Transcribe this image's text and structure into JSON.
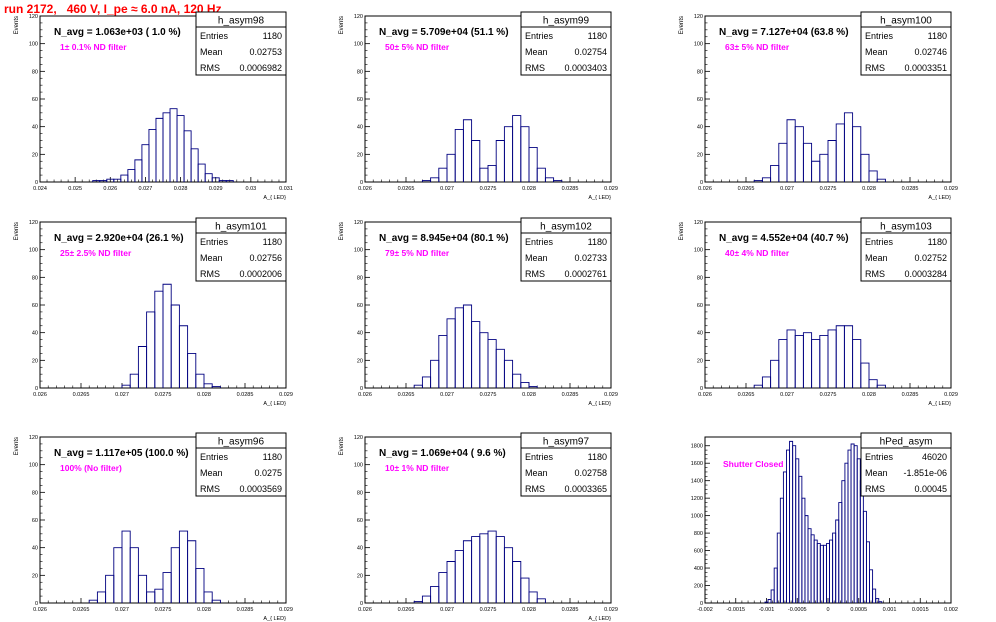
{
  "run_title": "run 2172,   460 V, I_pe ≈ 6.0 nA, 120 Hz",
  "colors": {
    "title": "#ff0000",
    "filter_label": "#ff00ff",
    "histogram": "#000080",
    "frame": "#000000"
  },
  "chart_data": [
    {
      "type": "histogram",
      "name": "h_asym98",
      "stats": [
        [
          "Entries",
          "1180"
        ],
        [
          "Mean",
          "0.02753"
        ],
        [
          "RMS",
          "0.0006982"
        ]
      ],
      "n_avg_label": "N_avg = 1.063e+03 ( 1.0 %)",
      "filter_label": "1± 0.1% ND filter",
      "ylabel": "Events",
      "xlabel": "A_{ LED}",
      "xlim": [
        0.024,
        0.031
      ],
      "xticks": [
        "0.024",
        "0.025",
        "0.026",
        "0.027",
        "0.028",
        "0.029",
        "0.03",
        "0.031"
      ],
      "ylim": [
        0,
        120
      ],
      "yticks": [
        0,
        20,
        40,
        60,
        80,
        100,
        120
      ],
      "bins": [
        [
          0.0256,
          1
        ],
        [
          0.0258,
          1
        ],
        [
          0.026,
          2
        ],
        [
          0.0262,
          2
        ],
        [
          0.0264,
          5
        ],
        [
          0.0266,
          9
        ],
        [
          0.0268,
          16
        ],
        [
          0.027,
          27
        ],
        [
          0.0272,
          38
        ],
        [
          0.0274,
          46
        ],
        [
          0.0276,
          50
        ],
        [
          0.0278,
          53
        ],
        [
          0.028,
          48
        ],
        [
          0.0282,
          37
        ],
        [
          0.0284,
          24
        ],
        [
          0.0286,
          13
        ],
        [
          0.0288,
          6
        ],
        [
          0.029,
          3
        ],
        [
          0.0292,
          1
        ],
        [
          0.0294,
          1
        ]
      ]
    },
    {
      "type": "histogram",
      "name": "h_asym99",
      "stats": [
        [
          "Entries",
          "1180"
        ],
        [
          "Mean",
          "0.02754"
        ],
        [
          "RMS",
          "0.0003403"
        ]
      ],
      "n_avg_label": "N_avg = 5.709e+04 (51.1 %)",
      "filter_label": "50± 5% ND filter",
      "ylabel": "Events",
      "xlabel": "A_{ LED}",
      "xlim": [
        0.026,
        0.029
      ],
      "xticks": [
        "0.026",
        "0.0265",
        "0.027",
        "0.0275",
        "0.028",
        "0.0285",
        "0.029"
      ],
      "ylim": [
        0,
        120
      ],
      "yticks": [
        0,
        20,
        40,
        60,
        80,
        100,
        120
      ],
      "bins": [
        [
          0.02675,
          1
        ],
        [
          0.02685,
          3
        ],
        [
          0.02695,
          10
        ],
        [
          0.02705,
          20
        ],
        [
          0.02715,
          38
        ],
        [
          0.02725,
          45
        ],
        [
          0.02735,
          30
        ],
        [
          0.02745,
          10
        ],
        [
          0.02755,
          12
        ],
        [
          0.02765,
          30
        ],
        [
          0.02775,
          40
        ],
        [
          0.02785,
          48
        ],
        [
          0.02795,
          40
        ],
        [
          0.02805,
          25
        ],
        [
          0.02815,
          10
        ],
        [
          0.02825,
          3
        ],
        [
          0.02835,
          1
        ]
      ]
    },
    {
      "type": "histogram",
      "name": "h_asym100",
      "stats": [
        [
          "Entries",
          "1180"
        ],
        [
          "Mean",
          "0.02746"
        ],
        [
          "RMS",
          "0.0003351"
        ]
      ],
      "n_avg_label": "N_avg = 7.127e+04 (63.8 %)",
      "filter_label": "63± 5% ND filter",
      "ylabel": "Events",
      "xlabel": "A_{ LED}",
      "xlim": [
        0.026,
        0.029
      ],
      "xticks": [
        "0.026",
        "0.0265",
        "0.027",
        "0.0275",
        "0.028",
        "0.0285",
        "0.029"
      ],
      "ylim": [
        0,
        120
      ],
      "yticks": [
        0,
        20,
        40,
        60,
        80,
        100,
        120
      ],
      "bins": [
        [
          0.02665,
          1
        ],
        [
          0.02675,
          3
        ],
        [
          0.02685,
          12
        ],
        [
          0.02695,
          28
        ],
        [
          0.02705,
          45
        ],
        [
          0.02715,
          40
        ],
        [
          0.02725,
          28
        ],
        [
          0.02735,
          15
        ],
        [
          0.02745,
          20
        ],
        [
          0.02755,
          30
        ],
        [
          0.02765,
          42
        ],
        [
          0.02775,
          50
        ],
        [
          0.02785,
          40
        ],
        [
          0.02795,
          20
        ],
        [
          0.02805,
          8
        ],
        [
          0.02815,
          2
        ]
      ]
    },
    {
      "type": "histogram",
      "name": "h_asym101",
      "stats": [
        [
          "Entries",
          "1180"
        ],
        [
          "Mean",
          "0.02756"
        ],
        [
          "RMS",
          "0.0002006"
        ]
      ],
      "n_avg_label": "N_avg = 2.920e+04 (26.1 %)",
      "filter_label": "25± 2.5% ND filter",
      "ylabel": "Events",
      "xlabel": "A_{ LED}",
      "xlim": [
        0.026,
        0.029
      ],
      "xticks": [
        "0.026",
        "0.0265",
        "0.027",
        "0.0275",
        "0.028",
        "0.0285",
        "0.029"
      ],
      "ylim": [
        0,
        120
      ],
      "yticks": [
        0,
        20,
        40,
        60,
        80,
        100,
        120
      ],
      "bins": [
        [
          0.02705,
          2
        ],
        [
          0.02715,
          10
        ],
        [
          0.02725,
          30
        ],
        [
          0.02735,
          55
        ],
        [
          0.02745,
          70
        ],
        [
          0.02755,
          75
        ],
        [
          0.02765,
          60
        ],
        [
          0.02775,
          45
        ],
        [
          0.02785,
          25
        ],
        [
          0.02795,
          10
        ],
        [
          0.02805,
          3
        ],
        [
          0.02815,
          1
        ]
      ]
    },
    {
      "type": "histogram",
      "name": "h_asym102",
      "stats": [
        [
          "Entries",
          "1180"
        ],
        [
          "Mean",
          "0.02733"
        ],
        [
          "RMS",
          "0.0002761"
        ]
      ],
      "n_avg_label": "N_avg = 8.945e+04 (80.1 %)",
      "filter_label": "79± 5% ND filter",
      "ylabel": "Events",
      "xlabel": "A_{ LED}",
      "xlim": [
        0.026,
        0.029
      ],
      "xticks": [
        "0.026",
        "0.0265",
        "0.027",
        "0.0275",
        "0.028",
        "0.0285",
        "0.029"
      ],
      "ylim": [
        0,
        120
      ],
      "yticks": [
        0,
        20,
        40,
        60,
        80,
        100,
        120
      ],
      "bins": [
        [
          0.02665,
          2
        ],
        [
          0.02675,
          8
        ],
        [
          0.02685,
          20
        ],
        [
          0.02695,
          38
        ],
        [
          0.02705,
          50
        ],
        [
          0.02715,
          58
        ],
        [
          0.02725,
          60
        ],
        [
          0.02735,
          48
        ],
        [
          0.02745,
          40
        ],
        [
          0.02755,
          35
        ],
        [
          0.02765,
          28
        ],
        [
          0.02775,
          20
        ],
        [
          0.02785,
          10
        ],
        [
          0.02795,
          4
        ],
        [
          0.02805,
          1
        ]
      ]
    },
    {
      "type": "histogram",
      "name": "h_asym103",
      "stats": [
        [
          "Entries",
          "1180"
        ],
        [
          "Mean",
          "0.02752"
        ],
        [
          "RMS",
          "0.0003284"
        ]
      ],
      "n_avg_label": "N_avg = 4.552e+04 (40.7 %)",
      "filter_label": "40± 4% ND filter",
      "ylabel": "Events",
      "xlabel": "A_{ LED}",
      "xlim": [
        0.026,
        0.029
      ],
      "xticks": [
        "0.026",
        "0.0265",
        "0.027",
        "0.0275",
        "0.028",
        "0.0285",
        "0.029"
      ],
      "ylim": [
        0,
        120
      ],
      "yticks": [
        0,
        20,
        40,
        60,
        80,
        100,
        120
      ],
      "bins": [
        [
          0.02665,
          2
        ],
        [
          0.02675,
          8
        ],
        [
          0.02685,
          20
        ],
        [
          0.02695,
          35
        ],
        [
          0.02705,
          42
        ],
        [
          0.02715,
          38
        ],
        [
          0.02725,
          40
        ],
        [
          0.02735,
          35
        ],
        [
          0.02745,
          38
        ],
        [
          0.02755,
          42
        ],
        [
          0.02765,
          45
        ],
        [
          0.02775,
          45
        ],
        [
          0.02785,
          35
        ],
        [
          0.02795,
          18
        ],
        [
          0.02805,
          6
        ],
        [
          0.02815,
          2
        ]
      ]
    },
    {
      "type": "histogram",
      "name": "h_asym96",
      "stats": [
        [
          "Entries",
          "1180"
        ],
        [
          "Mean",
          "0.0275"
        ],
        [
          "RMS",
          "0.0003569"
        ]
      ],
      "n_avg_label": "N_avg = 1.117e+05 (100.0 %)",
      "filter_label": "100% (No filter)",
      "ylabel": "Events",
      "xlabel": "A_{ LED}",
      "xlim": [
        0.026,
        0.029
      ],
      "xticks": [
        "0.026",
        "0.0265",
        "0.027",
        "0.0275",
        "0.028",
        "0.0285",
        "0.029"
      ],
      "ylim": [
        0,
        120
      ],
      "yticks": [
        0,
        20,
        40,
        60,
        80,
        100,
        120
      ],
      "bins": [
        [
          0.02665,
          2
        ],
        [
          0.02675,
          8
        ],
        [
          0.02685,
          20
        ],
        [
          0.02695,
          40
        ],
        [
          0.02705,
          52
        ],
        [
          0.02715,
          40
        ],
        [
          0.02725,
          20
        ],
        [
          0.02735,
          8
        ],
        [
          0.02745,
          10
        ],
        [
          0.02755,
          22
        ],
        [
          0.02765,
          40
        ],
        [
          0.02775,
          52
        ],
        [
          0.02785,
          45
        ],
        [
          0.02795,
          25
        ],
        [
          0.02805,
          8
        ],
        [
          0.02815,
          2
        ]
      ]
    },
    {
      "type": "histogram",
      "name": "h_asym97",
      "stats": [
        [
          "Entries",
          "1180"
        ],
        [
          "Mean",
          "0.02758"
        ],
        [
          "RMS",
          "0.0003365"
        ]
      ],
      "n_avg_label": "N_avg = 1.069e+04 ( 9.6 %)",
      "filter_label": "10± 1% ND filter",
      "ylabel": "Events",
      "xlabel": "A_{ LED}",
      "xlim": [
        0.026,
        0.029
      ],
      "xticks": [
        "0.026",
        "0.0265",
        "0.027",
        "0.0275",
        "0.028",
        "0.0285",
        "0.029"
      ],
      "ylim": [
        0,
        120
      ],
      "yticks": [
        0,
        20,
        40,
        60,
        80,
        100,
        120
      ],
      "bins": [
        [
          0.02665,
          1
        ],
        [
          0.02675,
          5
        ],
        [
          0.02685,
          12
        ],
        [
          0.02695,
          22
        ],
        [
          0.02705,
          30
        ],
        [
          0.02715,
          38
        ],
        [
          0.02725,
          45
        ],
        [
          0.02735,
          48
        ],
        [
          0.02745,
          50
        ],
        [
          0.02755,
          52
        ],
        [
          0.02765,
          48
        ],
        [
          0.02775,
          40
        ],
        [
          0.02785,
          30
        ],
        [
          0.02795,
          18
        ],
        [
          0.02805,
          8
        ],
        [
          0.02815,
          3
        ]
      ]
    },
    {
      "type": "histogram",
      "name": "hPed_asym",
      "stats": [
        [
          "Entries",
          "46020"
        ],
        [
          "Mean",
          "-1.851e-06"
        ],
        [
          "RMS",
          "0.00045"
        ]
      ],
      "n_avg_label": "",
      "filter_label": "Shutter Closed",
      "ylabel": "",
      "xlabel": "",
      "xlim": [
        -0.002,
        0.002
      ],
      "xticks": [
        "-0.002",
        "-0.0015",
        "-0.001",
        "-0.0005",
        "0",
        "0.0005",
        "0.001",
        "0.0015",
        "0.002"
      ],
      "ylim": [
        0,
        1900
      ],
      "yticks": [
        0,
        200,
        400,
        600,
        800,
        1000,
        1200,
        1400,
        1600,
        1800
      ],
      "bins": [
        [
          -0.001,
          10
        ],
        [
          -0.00095,
          40
        ],
        [
          -0.0009,
          150
        ],
        [
          -0.00085,
          400
        ],
        [
          -0.0008,
          800
        ],
        [
          -0.00075,
          1200
        ],
        [
          -0.0007,
          1500
        ],
        [
          -0.00065,
          1750
        ],
        [
          -0.0006,
          1850
        ],
        [
          -0.00055,
          1800
        ],
        [
          -0.0005,
          1650
        ],
        [
          -0.00045,
          1450
        ],
        [
          -0.0004,
          1200
        ],
        [
          -0.00035,
          1000
        ],
        [
          -0.0003,
          850
        ],
        [
          -0.00025,
          780
        ],
        [
          -0.0002,
          720
        ],
        [
          -0.00015,
          680
        ],
        [
          -0.0001,
          660
        ],
        [
          -5e-05,
          660
        ],
        [
          0.0,
          680
        ],
        [
          5e-05,
          720
        ],
        [
          0.0001,
          800
        ],
        [
          0.00015,
          950
        ],
        [
          0.0002,
          1150
        ],
        [
          0.00025,
          1400
        ],
        [
          0.0003,
          1600
        ],
        [
          0.00035,
          1750
        ],
        [
          0.0004,
          1820
        ],
        [
          0.00045,
          1800
        ],
        [
          0.0005,
          1650
        ],
        [
          0.00055,
          1400
        ],
        [
          0.0006,
          1050
        ],
        [
          0.00065,
          700
        ],
        [
          0.0007,
          380
        ],
        [
          0.00075,
          160
        ],
        [
          0.0008,
          50
        ],
        [
          0.00085,
          15
        ]
      ]
    }
  ]
}
